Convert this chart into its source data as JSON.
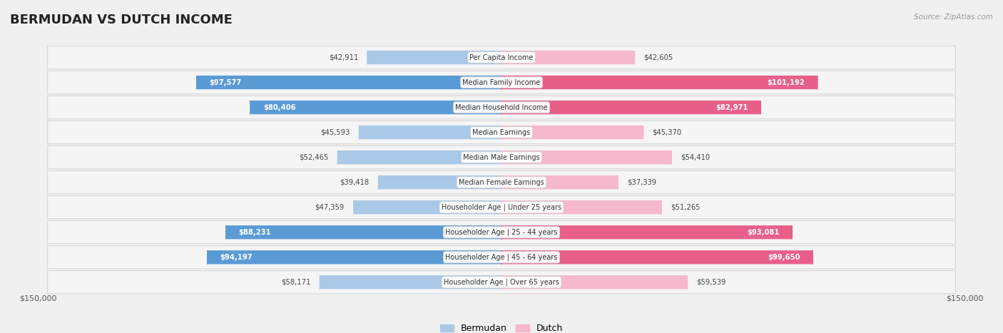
{
  "title": "BERMUDAN VS DUTCH INCOME",
  "source": "Source: ZipAtlas.com",
  "categories": [
    "Per Capita Income",
    "Median Family Income",
    "Median Household Income",
    "Median Earnings",
    "Median Male Earnings",
    "Median Female Earnings",
    "Householder Age | Under 25 years",
    "Householder Age | 25 - 44 years",
    "Householder Age | 45 - 64 years",
    "Householder Age | Over 65 years"
  ],
  "bermudan": [
    42911,
    97577,
    80406,
    45593,
    52465,
    39418,
    47359,
    88231,
    94197,
    58171
  ],
  "dutch": [
    42605,
    101192,
    82971,
    45370,
    54410,
    37339,
    51265,
    93081,
    99650,
    59539
  ],
  "bermudan_labels": [
    "$42,911",
    "$97,577",
    "$80,406",
    "$45,593",
    "$52,465",
    "$39,418",
    "$47,359",
    "$88,231",
    "$94,197",
    "$58,171"
  ],
  "dutch_labels": [
    "$42,605",
    "$101,192",
    "$82,971",
    "$45,370",
    "$54,410",
    "$37,339",
    "$51,265",
    "$93,081",
    "$99,650",
    "$59,539"
  ],
  "max_val": 150000,
  "bermudan_color_light": "#aac8e8",
  "bermudan_color_dark": "#5b9bd5",
  "dutch_color_light": "#f5b8cc",
  "dutch_color_dark": "#e8608a",
  "bg_color": "#f0f0f0",
  "row_bg": "#f5f5f5",
  "row_edge": "#d8d8d8",
  "legend_bermudan": "Bermudan",
  "legend_dutch": "Dutch",
  "axis_label_left": "$150,000",
  "axis_label_right": "$150,000",
  "large_threshold": 60000
}
